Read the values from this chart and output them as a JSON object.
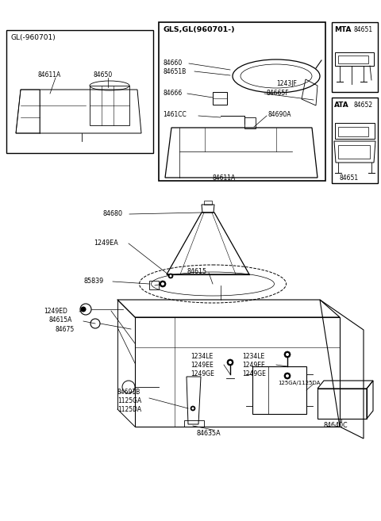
{
  "bg_color": "#ffffff",
  "box1_label": "GL(-960701)",
  "box2_label": "GLS,GL(960701-)",
  "box3_label": "MTA",
  "box4_label": "ATA",
  "box1_parts": [
    "84611A",
    "84650"
  ],
  "box2_parts": [
    "84660",
    "84651B",
    "84666",
    "1243JF",
    "84665F",
    "1461CC",
    "84690A",
    "84611A"
  ],
  "box3_parts": [
    "84651"
  ],
  "box4_parts": [
    "84652",
    "84651"
  ],
  "main_parts": [
    "84680",
    "1249EA",
    "85839",
    "84615",
    "1249ED",
    "84615A",
    "84675",
    "1234LE",
    "1249EE",
    "1249GE",
    "125GA/1125DA",
    "84691B",
    "1125GA",
    "1125DA",
    "84635A",
    "84640C"
  ]
}
